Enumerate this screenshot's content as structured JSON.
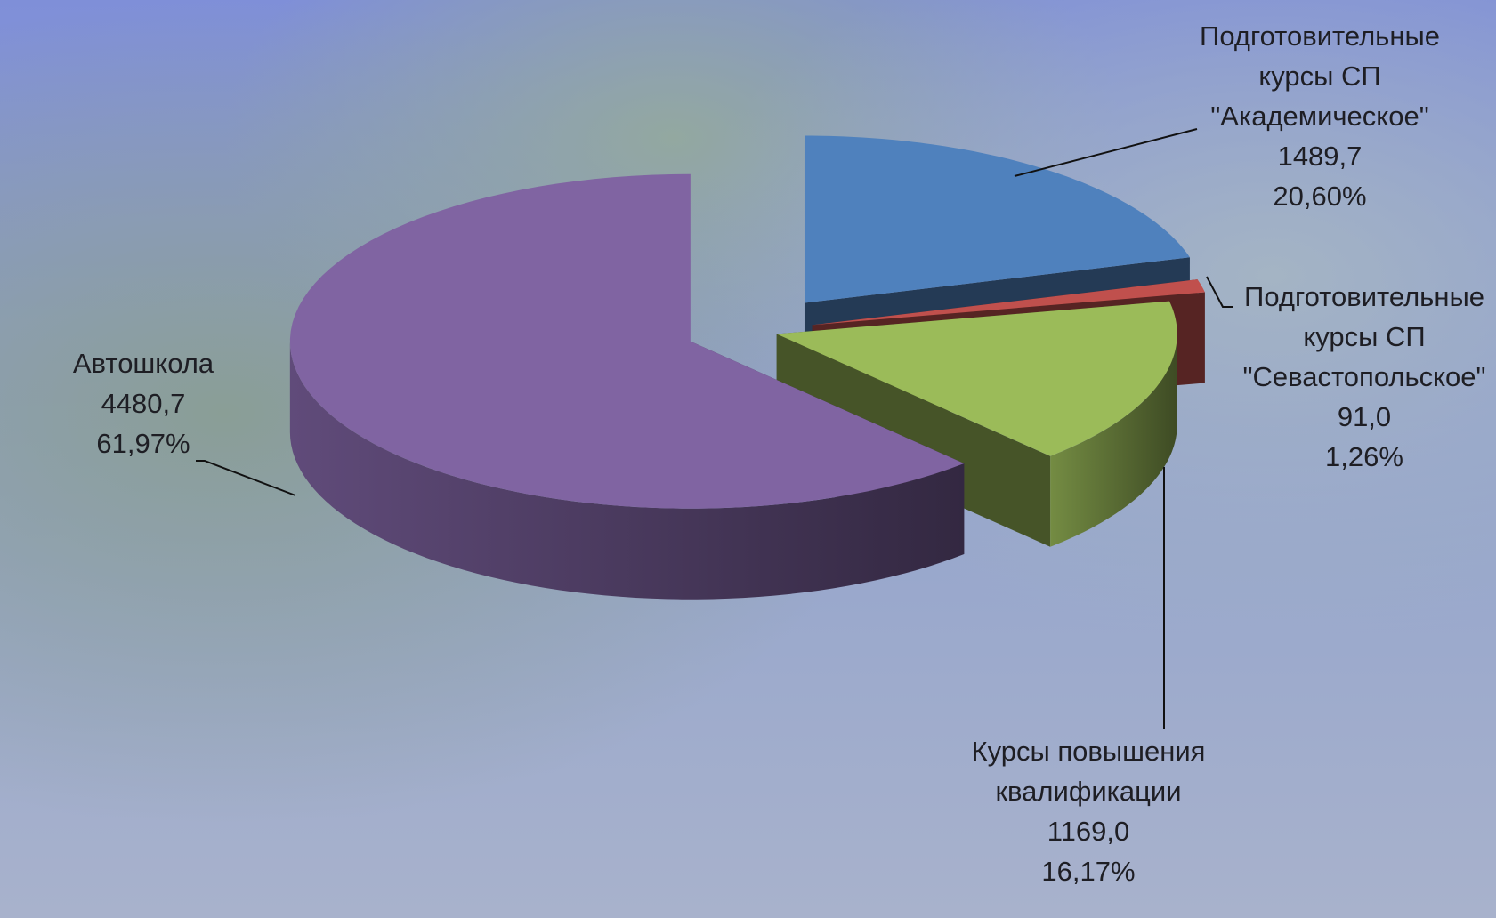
{
  "chart_data": {
    "type": "pie",
    "categories": [
      [
        "Подготовительные",
        "курсы СП",
        "\"Академическое\""
      ],
      [
        "Подготовительные",
        "курсы СП",
        "\"Севастопольское\""
      ],
      [
        "Курсы повышения",
        "квалификации"
      ],
      [
        "Автошкола"
      ]
    ],
    "values": [
      1489.7,
      91.0,
      1169.0,
      4480.7
    ],
    "value_labels": [
      "1489,7",
      "91,0",
      "1169,0",
      "4480,7"
    ],
    "percents": [
      20.6,
      1.26,
      16.17,
      61.97
    ],
    "percent_labels": [
      "20,60%",
      "1,26%",
      "16,17%",
      "61,97%"
    ],
    "colors": [
      "#4f81bd",
      "#c0504d",
      "#9bbb59",
      "#8064a2"
    ]
  }
}
